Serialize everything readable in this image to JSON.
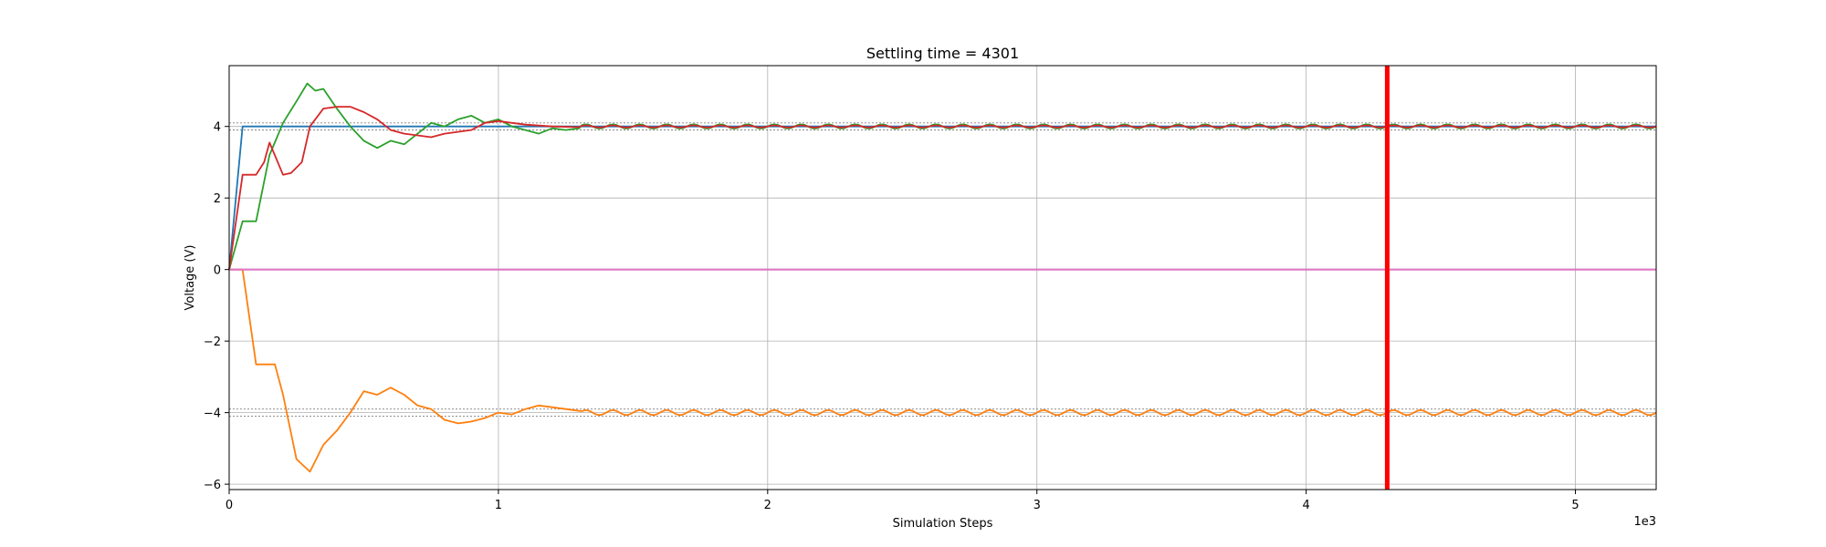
{
  "chart_data": {
    "type": "line",
    "title": "Settling time = 4301",
    "xlabel": "Simulation Steps",
    "ylabel": "Voltage (V)",
    "x_offset_label": "1e3",
    "xlim": [
      0,
      5.3
    ],
    "ylim": [
      -6.15,
      5.7
    ],
    "xticks": [
      0,
      1,
      2,
      3,
      4,
      5
    ],
    "xtick_labels": [
      "0",
      "1",
      "2",
      "3",
      "4",
      "5"
    ],
    "yticks": [
      -6,
      -4,
      -2,
      0,
      2,
      4
    ],
    "ytick_labels": [
      "−6",
      "−4",
      "−2",
      "0",
      "2",
      "4"
    ],
    "grid": true,
    "settling_marker": {
      "x": 4.301,
      "color": "#ff0000"
    },
    "tolerance_bands": [
      {
        "values": [
          3.9,
          4.1
        ],
        "color": "#808080"
      },
      {
        "values": [
          -3.9,
          -4.1
        ],
        "color": "#808080"
      }
    ],
    "series": [
      {
        "color": "#1f77b4",
        "x": [
          0,
          0.05,
          5.3
        ],
        "y": [
          0,
          4.0,
          4.0
        ]
      },
      {
        "color": "#ff7f0e",
        "x": [
          0,
          0.05,
          0.1,
          0.17,
          0.2,
          0.25,
          0.3,
          0.35,
          0.4,
          0.45,
          0.5,
          0.55,
          0.6,
          0.65,
          0.7,
          0.75,
          0.8,
          0.85,
          0.9,
          0.95,
          1.0,
          1.05,
          1.1,
          1.15,
          1.2,
          1.25,
          1.3
        ],
        "y": [
          0,
          0,
          -2.65,
          -2.65,
          -3.5,
          -5.3,
          -5.65,
          -4.9,
          -4.5,
          -4.0,
          -3.4,
          -3.5,
          -3.3,
          -3.5,
          -3.8,
          -3.9,
          -4.2,
          -4.3,
          -4.25,
          -4.15,
          -4.0,
          -4.05,
          -3.9,
          -3.8,
          -3.85,
          -3.9,
          -3.95
        ],
        "oscillation": {
          "start": 1.3,
          "end": 5.3,
          "center": -4.0,
          "amplitude": 0.07,
          "period": 0.1
        }
      },
      {
        "color": "#2ca02c",
        "x": [
          0,
          0.05,
          0.1,
          0.15,
          0.2,
          0.25,
          0.29,
          0.32,
          0.35,
          0.4,
          0.45,
          0.5,
          0.55,
          0.6,
          0.65,
          0.7,
          0.75,
          0.8,
          0.85,
          0.9,
          0.95,
          1.0,
          1.05,
          1.1,
          1.15,
          1.2,
          1.25,
          1.3
        ],
        "y": [
          0,
          1.35,
          1.35,
          3.2,
          4.1,
          4.7,
          5.2,
          5.0,
          5.05,
          4.5,
          4.0,
          3.6,
          3.4,
          3.6,
          3.5,
          3.8,
          4.1,
          4.0,
          4.2,
          4.3,
          4.1,
          4.2,
          4.0,
          3.9,
          3.8,
          3.95,
          3.9,
          3.95
        ],
        "oscillation": {
          "start": 1.3,
          "end": 5.3,
          "center": 4.0,
          "amplitude": 0.06,
          "period": 0.1
        }
      },
      {
        "color": "#d62728",
        "x": [
          0,
          0.05,
          0.1,
          0.13,
          0.15,
          0.2,
          0.23,
          0.27,
          0.3,
          0.35,
          0.4,
          0.45,
          0.5,
          0.55,
          0.6,
          0.65,
          0.7,
          0.75,
          0.8,
          0.85,
          0.9,
          0.95,
          1.0,
          1.05,
          1.1,
          1.2,
          1.3
        ],
        "y": [
          0,
          2.65,
          2.65,
          3.0,
          3.55,
          2.65,
          2.7,
          3.0,
          4.0,
          4.5,
          4.55,
          4.55,
          4.4,
          4.2,
          3.9,
          3.8,
          3.75,
          3.7,
          3.8,
          3.85,
          3.9,
          4.1,
          4.15,
          4.1,
          4.05,
          4.0,
          3.98
        ],
        "oscillation": {
          "start": 1.3,
          "end": 5.3,
          "center": 4.0,
          "amplitude": 0.03,
          "period": 0.1
        }
      },
      {
        "color": "#9467bd",
        "x": [
          0,
          5.3
        ],
        "y": [
          0,
          0
        ]
      },
      {
        "color": "#e377c2",
        "x": [
          0,
          5.3
        ],
        "y": [
          0,
          0
        ]
      }
    ]
  }
}
